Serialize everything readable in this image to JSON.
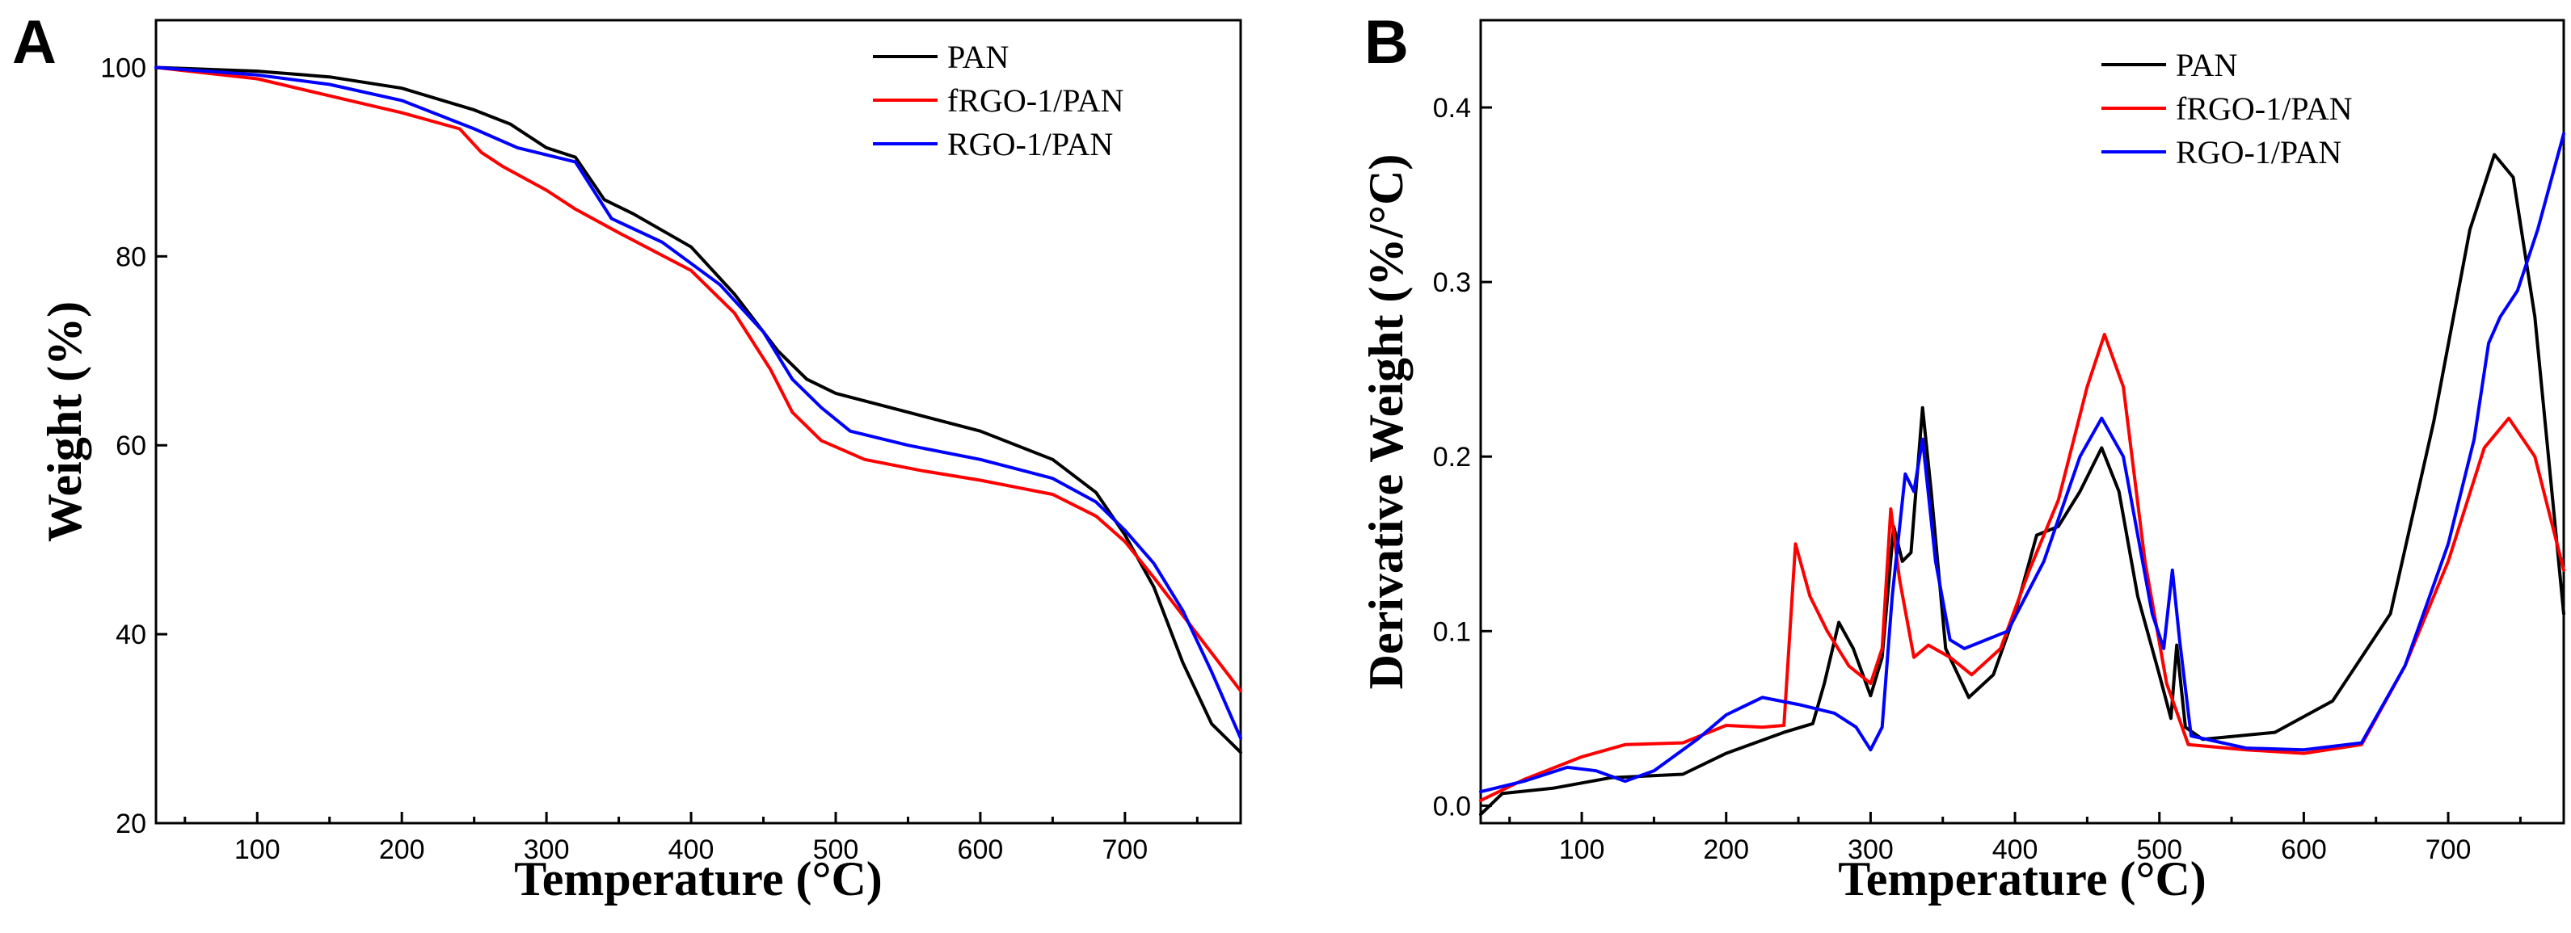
{
  "chart_data": [
    {
      "panel": "A",
      "type": "line",
      "title": "",
      "xlabel": "Temperature (°C)",
      "ylabel": "Weight (%)",
      "xlim": [
        30,
        780
      ],
      "ylim": [
        20,
        105
      ],
      "xticks": [
        100,
        200,
        300,
        400,
        500,
        600,
        700
      ],
      "yticks": [
        20,
        40,
        60,
        80,
        100
      ],
      "legend_position": "top-right",
      "series": [
        {
          "name": "PAN",
          "color": "#000000",
          "points": [
            [
              30,
              100
            ],
            [
              100,
              99.6
            ],
            [
              150,
              99
            ],
            [
              200,
              97.8
            ],
            [
              250,
              95.5
            ],
            [
              275,
              94
            ],
            [
              300,
              91.5
            ],
            [
              320,
              90.5
            ],
            [
              340,
              86
            ],
            [
              360,
              84.5
            ],
            [
              400,
              81
            ],
            [
              430,
              76
            ],
            [
              460,
              70
            ],
            [
              480,
              67
            ],
            [
              500,
              65.5
            ],
            [
              550,
              63.5
            ],
            [
              600,
              61.5
            ],
            [
              650,
              58.5
            ],
            [
              680,
              55
            ],
            [
              700,
              50.5
            ],
            [
              720,
              45
            ],
            [
              740,
              37
            ],
            [
              760,
              30.5
            ],
            [
              780,
              27.5
            ]
          ]
        },
        {
          "name": "fRGO-1/PAN",
          "color": "#ff0000",
          "points": [
            [
              30,
              100
            ],
            [
              100,
              98.8
            ],
            [
              150,
              97
            ],
            [
              200,
              95.2
            ],
            [
              240,
              93.5
            ],
            [
              255,
              91
            ],
            [
              270,
              89.5
            ],
            [
              300,
              87
            ],
            [
              320,
              85
            ],
            [
              350,
              82.5
            ],
            [
              400,
              78.5
            ],
            [
              430,
              74
            ],
            [
              455,
              68
            ],
            [
              470,
              63.5
            ],
            [
              490,
              60.5
            ],
            [
              520,
              58.5
            ],
            [
              560,
              57.3
            ],
            [
              600,
              56.3
            ],
            [
              650,
              54.8
            ],
            [
              680,
              52.5
            ],
            [
              700,
              49.8
            ],
            [
              720,
              46
            ],
            [
              750,
              40
            ],
            [
              780,
              34
            ]
          ]
        },
        {
          "name": "RGO-1/PAN",
          "color": "#0000ff",
          "points": [
            [
              30,
              100
            ],
            [
              100,
              99.2
            ],
            [
              150,
              98.2
            ],
            [
              200,
              96.5
            ],
            [
              250,
              93.5
            ],
            [
              280,
              91.5
            ],
            [
              320,
              90
            ],
            [
              345,
              84
            ],
            [
              380,
              81.5
            ],
            [
              420,
              77
            ],
            [
              450,
              72
            ],
            [
              470,
              67
            ],
            [
              490,
              64
            ],
            [
              510,
              61.5
            ],
            [
              550,
              60
            ],
            [
              600,
              58.5
            ],
            [
              650,
              56.5
            ],
            [
              680,
              54
            ],
            [
              700,
              51
            ],
            [
              720,
              47.5
            ],
            [
              740,
              42.5
            ],
            [
              760,
              36
            ],
            [
              780,
              29
            ]
          ]
        }
      ]
    },
    {
      "panel": "B",
      "type": "line",
      "title": "",
      "xlabel": "Temperature (°C)",
      "ylabel": "Derivative Weight (%/°C)",
      "xlim": [
        30,
        780
      ],
      "ylim": [
        -0.01,
        0.45
      ],
      "xticks": [
        100,
        200,
        300,
        400,
        500,
        600,
        700
      ],
      "yticks": [
        0.0,
        0.1,
        0.2,
        0.3,
        0.4
      ],
      "legend_position": "top-center",
      "series": [
        {
          "name": "PAN",
          "color": "#000000",
          "points": [
            [
              30,
              -0.005
            ],
            [
              45,
              0.007
            ],
            [
              80,
              0.01
            ],
            [
              120,
              0.016
            ],
            [
              170,
              0.018
            ],
            [
              200,
              0.03
            ],
            [
              240,
              0.042
            ],
            [
              260,
              0.047
            ],
            [
              268,
              0.07
            ],
            [
              278,
              0.105
            ],
            [
              288,
              0.09
            ],
            [
              300,
              0.063
            ],
            [
              308,
              0.085
            ],
            [
              316,
              0.16
            ],
            [
              322,
              0.14
            ],
            [
              328,
              0.145
            ],
            [
              336,
              0.228
            ],
            [
              342,
              0.18
            ],
            [
              352,
              0.09
            ],
            [
              368,
              0.062
            ],
            [
              385,
              0.075
            ],
            [
              400,
              0.11
            ],
            [
              415,
              0.155
            ],
            [
              430,
              0.16
            ],
            [
              445,
              0.18
            ],
            [
              460,
              0.205
            ],
            [
              472,
              0.18
            ],
            [
              485,
              0.12
            ],
            [
              500,
              0.075
            ],
            [
              508,
              0.05
            ],
            [
              512,
              0.092
            ],
            [
              518,
              0.045
            ],
            [
              530,
              0.038
            ],
            [
              580,
              0.042
            ],
            [
              620,
              0.06
            ],
            [
              660,
              0.11
            ],
            [
              690,
              0.22
            ],
            [
              715,
              0.33
            ],
            [
              732,
              0.373
            ],
            [
              745,
              0.36
            ],
            [
              760,
              0.28
            ],
            [
              780,
              0.11
            ]
          ]
        },
        {
          "name": "fRGO-1/PAN",
          "color": "#ff0000",
          "points": [
            [
              30,
              0.003
            ],
            [
              60,
              0.015
            ],
            [
              100,
              0.028
            ],
            [
              130,
              0.035
            ],
            [
              170,
              0.036
            ],
            [
              200,
              0.046
            ],
            [
              225,
              0.045
            ],
            [
              240,
              0.046
            ],
            [
              248,
              0.15
            ],
            [
              258,
              0.12
            ],
            [
              270,
              0.1
            ],
            [
              285,
              0.08
            ],
            [
              300,
              0.07
            ],
            [
              308,
              0.09
            ],
            [
              314,
              0.17
            ],
            [
              320,
              0.13
            ],
            [
              330,
              0.085
            ],
            [
              340,
              0.092
            ],
            [
              355,
              0.085
            ],
            [
              370,
              0.075
            ],
            [
              390,
              0.09
            ],
            [
              410,
              0.135
            ],
            [
              430,
              0.175
            ],
            [
              450,
              0.24
            ],
            [
              462,
              0.27
            ],
            [
              475,
              0.24
            ],
            [
              490,
              0.14
            ],
            [
              505,
              0.07
            ],
            [
              520,
              0.035
            ],
            [
              560,
              0.032
            ],
            [
              600,
              0.03
            ],
            [
              640,
              0.035
            ],
            [
              670,
              0.08
            ],
            [
              700,
              0.14
            ],
            [
              725,
              0.205
            ],
            [
              742,
              0.222
            ],
            [
              760,
              0.2
            ],
            [
              780,
              0.135
            ]
          ]
        },
        {
          "name": "RGO-1/PAN",
          "color": "#0000ff",
          "points": [
            [
              30,
              0.008
            ],
            [
              60,
              0.014
            ],
            [
              90,
              0.022
            ],
            [
              110,
              0.02
            ],
            [
              130,
              0.014
            ],
            [
              150,
              0.02
            ],
            [
              180,
              0.038
            ],
            [
              200,
              0.052
            ],
            [
              225,
              0.062
            ],
            [
              250,
              0.058
            ],
            [
              275,
              0.053
            ],
            [
              290,
              0.045
            ],
            [
              300,
              0.032
            ],
            [
              308,
              0.045
            ],
            [
              315,
              0.12
            ],
            [
              324,
              0.19
            ],
            [
              330,
              0.18
            ],
            [
              336,
              0.21
            ],
            [
              345,
              0.14
            ],
            [
              355,
              0.095
            ],
            [
              365,
              0.09
            ],
            [
              395,
              0.1
            ],
            [
              420,
              0.14
            ],
            [
              445,
              0.2
            ],
            [
              460,
              0.222
            ],
            [
              475,
              0.2
            ],
            [
              495,
              0.11
            ],
            [
              503,
              0.09
            ],
            [
              509,
              0.135
            ],
            [
              514,
              0.095
            ],
            [
              522,
              0.04
            ],
            [
              560,
              0.033
            ],
            [
              600,
              0.032
            ],
            [
              640,
              0.036
            ],
            [
              670,
              0.08
            ],
            [
              700,
              0.15
            ],
            [
              718,
              0.21
            ],
            [
              728,
              0.265
            ],
            [
              736,
              0.28
            ],
            [
              748,
              0.295
            ],
            [
              762,
              0.33
            ],
            [
              780,
              0.385
            ]
          ]
        }
      ]
    }
  ]
}
